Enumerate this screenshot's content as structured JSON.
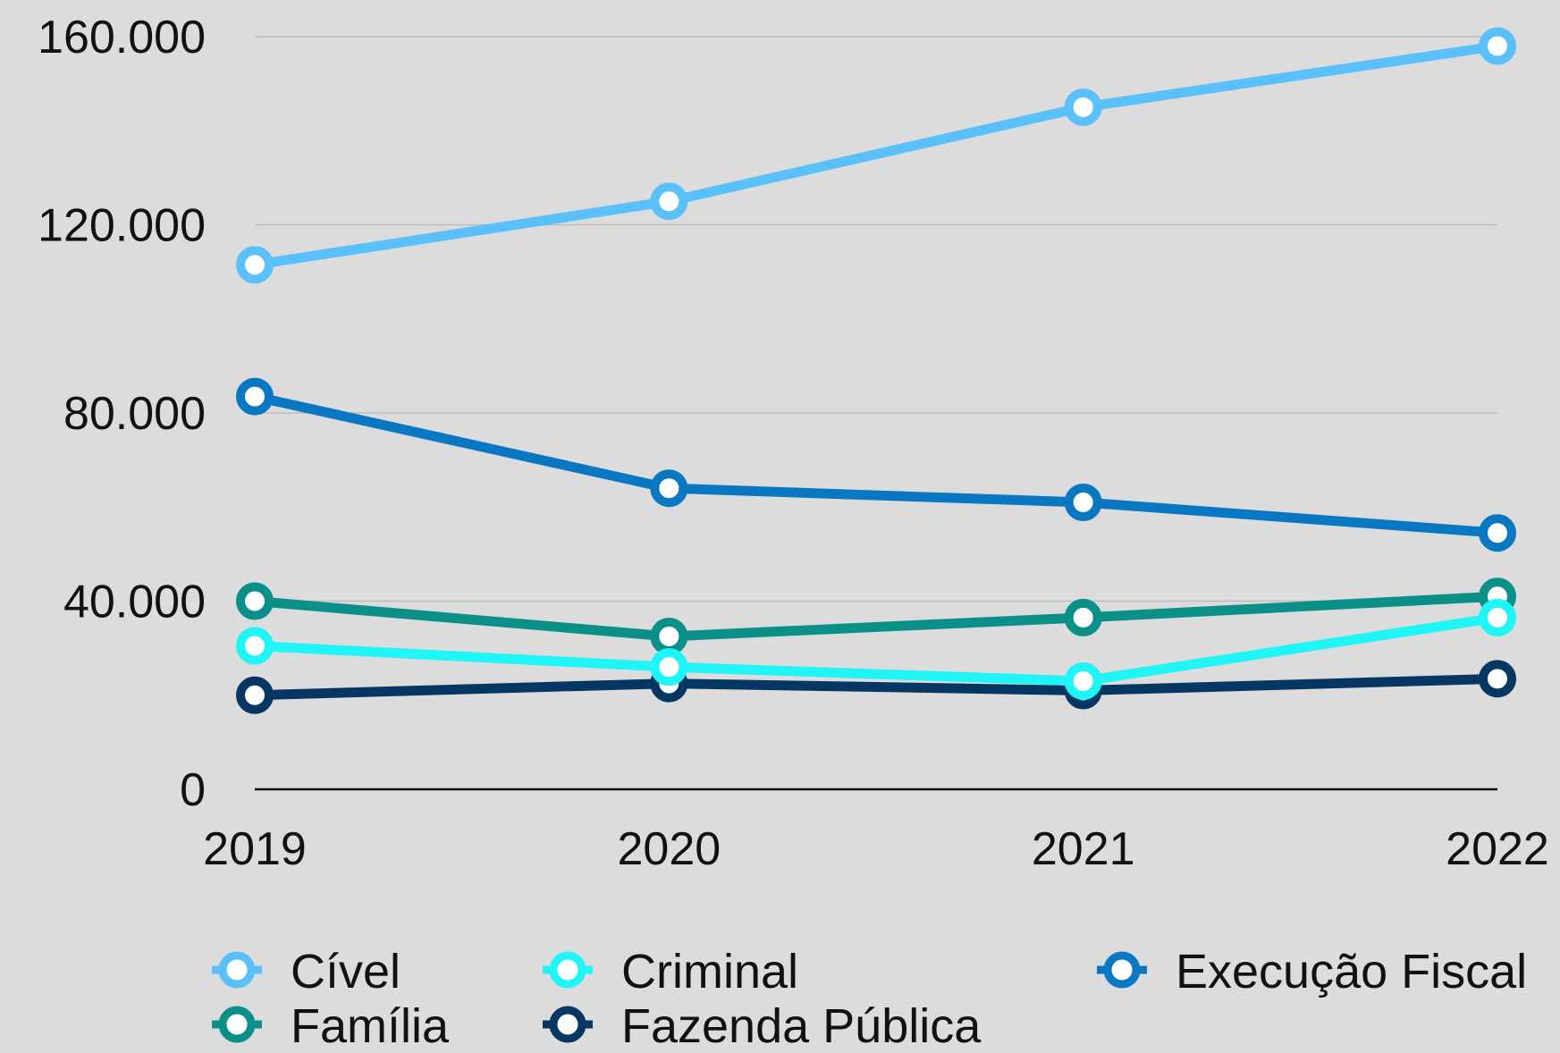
{
  "chart_data": {
    "type": "line",
    "title": "",
    "xlabel": "",
    "ylabel": "",
    "x": [
      "2019",
      "2020",
      "2021",
      "2022"
    ],
    "ylim": [
      0,
      160000
    ],
    "yticks": [
      0,
      40000,
      80000,
      120000,
      160000
    ],
    "ytick_labels": [
      "0",
      "40.000",
      "80.000",
      "120.000",
      "160.000"
    ],
    "grid": true,
    "legend_position": "bottom",
    "series": [
      {
        "name": "Cível",
        "color": "#5ac0fa",
        "values": [
          111500,
          125000,
          145000,
          158000
        ]
      },
      {
        "name": "Criminal",
        "color": "#1ff4f6",
        "values": [
          30500,
          26000,
          23000,
          36500
        ]
      },
      {
        "name": "Execução Fiscal",
        "color": "#0a77c2",
        "values": [
          83500,
          64000,
          61000,
          54500
        ]
      },
      {
        "name": "Família",
        "color": "#0a9088",
        "values": [
          40000,
          32500,
          36500,
          41000
        ]
      },
      {
        "name": "Fazenda Pública",
        "color": "#063762",
        "values": [
          20000,
          22500,
          21000,
          23500
        ]
      }
    ]
  }
}
